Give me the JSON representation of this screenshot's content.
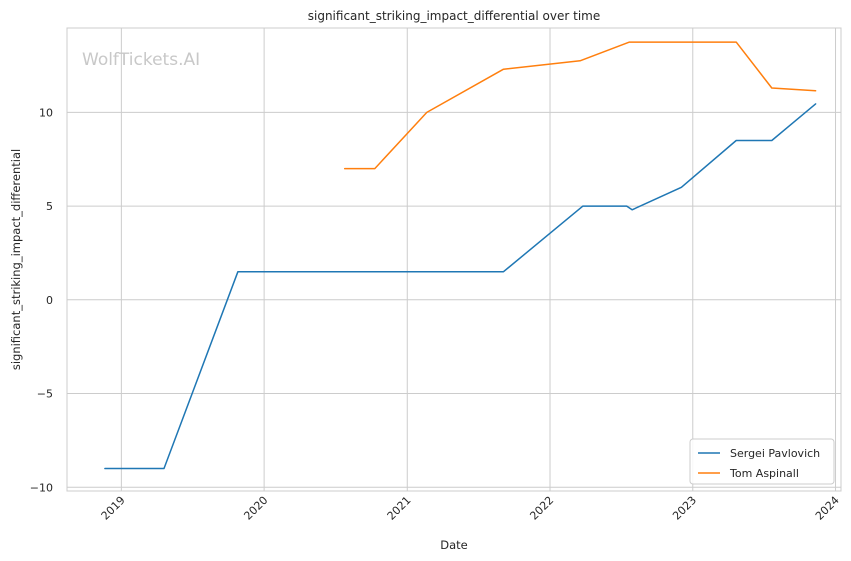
{
  "chart_data": {
    "type": "line",
    "title": "significant_striking_impact_differential over time",
    "xlabel": "Date",
    "ylabel": "significant_striking_impact_differential",
    "watermark": "WolfTickets.AI",
    "xlim": [
      "2018-08-15",
      "2024-01-15"
    ],
    "ylim": [
      -10.2,
      14.5
    ],
    "x_ticks": [
      "2019",
      "2020",
      "2021",
      "2022",
      "2023",
      "2024"
    ],
    "y_ticks": [
      -10,
      -5,
      0,
      5,
      10
    ],
    "y_tick_labels": [
      "−10",
      "−5",
      "0",
      "5",
      "10"
    ],
    "grid": true,
    "legend_position": "lower-right",
    "series": [
      {
        "name": "Sergei Pavlovich",
        "color": "#1f77b4",
        "points": [
          [
            "2018-11-20",
            -9.0
          ],
          [
            "2019-04-20",
            -9.0
          ],
          [
            "2019-10-26",
            1.5
          ],
          [
            "2021-09-04",
            1.5
          ],
          [
            "2022-03-26",
            5.0
          ],
          [
            "2022-07-16",
            5.0
          ],
          [
            "2022-07-30",
            4.8
          ],
          [
            "2022-12-03",
            6.0
          ],
          [
            "2023-04-22",
            8.5
          ],
          [
            "2023-07-22",
            8.5
          ],
          [
            "2023-11-11",
            10.45
          ]
        ]
      },
      {
        "name": "Tom Aspinall",
        "color": "#ff7f0e",
        "points": [
          [
            "2020-07-25",
            7.0
          ],
          [
            "2020-10-10",
            7.0
          ],
          [
            "2021-02-20",
            10.0
          ],
          [
            "2021-09-04",
            12.3
          ],
          [
            "2022-03-19",
            12.75
          ],
          [
            "2022-07-23",
            13.75
          ],
          [
            "2023-04-22",
            13.75
          ],
          [
            "2023-07-22",
            11.3
          ],
          [
            "2023-11-11",
            11.15
          ]
        ]
      }
    ]
  }
}
